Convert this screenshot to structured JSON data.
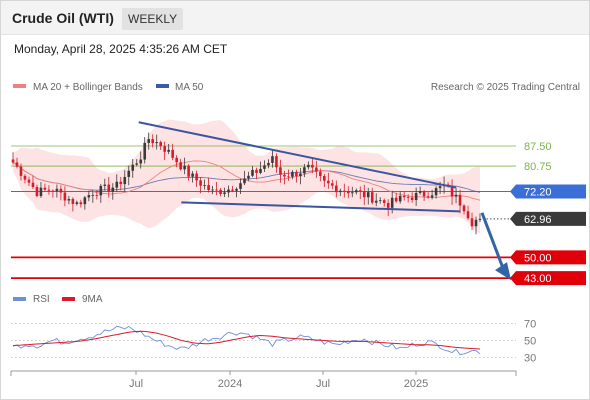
{
  "header": {
    "title": "Crude Oil (WTI)",
    "period": "WEEKLY",
    "datetime": "Monday, April 28, 2025 4:35:26 AM CET"
  },
  "legend": {
    "ma20_label": "MA 20 + Bollinger Bands",
    "ma50_label": "MA 50",
    "rsi_label": "RSI",
    "ma9_label": "9MA",
    "copyright": "Research © 2025 Trading Central"
  },
  "colors": {
    "ma20": "#f08080",
    "bollinger_fill": "#fde3e3",
    "ma50": "#3c5aa6",
    "trendline": "#3b55a0",
    "pivot": "#3b6fd8",
    "resistance": "#7fb24a",
    "support": "#e0000a",
    "last_price": "#3a3a3a",
    "candle_up": "#3a3a3a",
    "candle_down": "#d81a2a",
    "arrow": "#3264a8",
    "rsi": "#6f8fd8",
    "rsi_ma": "#d81a2a"
  },
  "chart_data": [
    {
      "type": "candlestick",
      "title": "Crude Oil (WTI)",
      "timeframe": "weekly",
      "y_range": [
        39,
        103
      ],
      "x_ticks": [
        "Jul",
        "2024",
        "Jul",
        "2025"
      ],
      "last_price": 62.96,
      "pivot": 72.2,
      "resistances": [
        80.75,
        87.5
      ],
      "supports": [
        50.0,
        43.0
      ],
      "trend_channel": {
        "upper": [
          {
            "date": "2023-09-18",
            "price": 95.5
          },
          {
            "date": "2025-03-10",
            "price": 73.5
          }
        ],
        "lower": [
          {
            "date": "2023-12-18",
            "price": 68.5
          },
          {
            "date": "2025-03-17",
            "price": 65.5
          }
        ]
      },
      "forecast_arrow": {
        "from_price": 65.0,
        "to_price": 43.0
      },
      "ma20_sample": [
        80,
        82,
        85,
        88,
        86,
        80,
        78,
        78,
        80,
        82,
        80,
        76,
        73,
        72,
        71,
        70,
        68
      ],
      "ma50_sample": [
        88,
        86,
        84,
        82,
        81,
        81,
        80,
        79,
        80,
        79,
        78,
        77,
        75,
        74,
        73,
        72,
        71
      ]
    },
    {
      "type": "line",
      "title": "RSI",
      "y_ticks": [
        70,
        50,
        30
      ],
      "series": [
        {
          "name": "RSI",
          "values": [
            42,
            46,
            44,
            50,
            48,
            52,
            55,
            60,
            64,
            65,
            58,
            50,
            44,
            40,
            45,
            52,
            55,
            60,
            58,
            52,
            46,
            50,
            54,
            52,
            48,
            45,
            50,
            52,
            47,
            44,
            40,
            46,
            48,
            44,
            36,
            38,
            37
          ]
        },
        {
          "name": "9MA",
          "values": [
            44,
            45,
            46,
            47,
            48,
            49,
            51,
            54,
            57,
            60,
            61,
            59,
            55,
            50,
            47,
            46,
            48,
            51,
            54,
            56,
            55,
            53,
            52,
            51,
            50,
            49,
            49,
            49,
            48,
            47,
            46,
            45,
            45,
            44,
            42,
            41,
            40
          ]
        }
      ]
    }
  ]
}
